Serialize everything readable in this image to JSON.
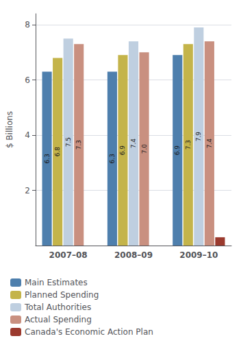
{
  "chart_data": {
    "type": "bar",
    "ylabel": "$ Billions",
    "categories": [
      "2007–08",
      "2008–09",
      "2009–10"
    ],
    "series": [
      {
        "name": "Main Estimates",
        "values": [
          6.3,
          6.3,
          6.9
        ],
        "color": "#4e7fad"
      },
      {
        "name": "Planned Spending",
        "values": [
          6.8,
          6.9,
          7.3
        ],
        "color": "#c4b44a"
      },
      {
        "name": "Total Authorities",
        "values": [
          7.5,
          7.4,
          7.9
        ],
        "color": "#bfcfe0"
      },
      {
        "name": "Actual Spending",
        "values": [
          7.3,
          7.0,
          7.4
        ],
        "value_labels": [
          "7.3",
          "7.0",
          "7.4"
        ],
        "color": "#c99080"
      },
      {
        "name": "Canada's Economic Action Plan",
        "values": [
          0.0,
          0.0,
          0.3
        ],
        "color": "#9b3a2e",
        "data_labels": false
      }
    ],
    "ylim": [
      0,
      8.4
    ],
    "yticks": [
      2,
      4,
      6,
      8
    ],
    "grid": true,
    "legend": "bottom",
    "data_labels": true
  }
}
